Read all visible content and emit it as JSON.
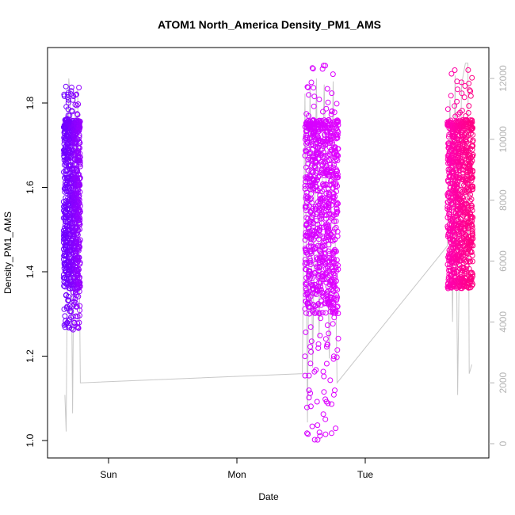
{
  "chart_data": {
    "type": "scatter",
    "title": "ATOM1 North_America Density_PM1_AMS",
    "xlabel": "Date",
    "ylabel": "Density_PM1_AMS",
    "x_axis": {
      "kind": "date",
      "range": [
        "Sat",
        "Tue"
      ],
      "ticks": [
        "Sun",
        "Mon",
        "Tue"
      ]
    },
    "y_axis": {
      "range": [
        0.98,
        1.92
      ],
      "ticks": [
        1.0,
        1.2,
        1.4,
        1.6,
        1.8
      ]
    },
    "y2_axis": {
      "range": [
        0,
        12500
      ],
      "ticks": [
        0,
        2000,
        4000,
        6000,
        8000,
        10000,
        12000
      ],
      "color": "#b3b3b3"
    },
    "grid": false,
    "legend": "none",
    "series": [
      {
        "kind": "points",
        "marker": "open-circle",
        "color_start": "#6b00ff",
        "color_end": "#9a00ff",
        "x_day_range": [
          -0.35,
          -0.22
        ],
        "y_summary": {
          "core_low": 1.36,
          "core_high": 1.75,
          "min": 1.26,
          "max": 1.84
        }
      },
      {
        "kind": "points",
        "marker": "open-circle",
        "color_start": "#d400ff",
        "color_end": "#e000ff",
        "x_day_range": [
          1.53,
          1.79
        ],
        "y_summary": {
          "core_low": 1.3,
          "core_high": 1.75,
          "min": 1.0,
          "max": 1.9
        }
      },
      {
        "kind": "points",
        "marker": "open-circle",
        "color_start": "#ff00b3",
        "color_end": "#ff0080",
        "x_day_range": [
          2.64,
          2.84
        ],
        "y_summary": {
          "core_low": 1.38,
          "core_high": 1.75,
          "min": 1.36,
          "max": 1.88
        }
      },
      {
        "kind": "line",
        "axis": "y2",
        "color": "#c8c8c8",
        "points": [
          [
            -0.34,
            1600
          ],
          [
            -0.33,
            400
          ],
          [
            -0.31,
            12000
          ],
          [
            -0.3,
            11400
          ],
          [
            -0.28,
            1000
          ],
          [
            -0.26,
            11500
          ],
          [
            -0.24,
            11600
          ],
          [
            -0.22,
            2000
          ],
          [
            1.51,
            2300
          ],
          [
            1.53,
            11500
          ],
          [
            1.55,
            700
          ],
          [
            1.57,
            11800
          ],
          [
            1.59,
            2500
          ],
          [
            1.62,
            12000
          ],
          [
            1.64,
            3500
          ],
          [
            1.68,
            11800
          ],
          [
            1.72,
            2800
          ],
          [
            1.75,
            11900
          ],
          [
            1.78,
            2000
          ],
          [
            2.64,
            6500
          ],
          [
            2.66,
            11300
          ],
          [
            2.68,
            4000
          ],
          [
            2.7,
            12100
          ],
          [
            2.72,
            1600
          ],
          [
            2.75,
            11800
          ],
          [
            2.78,
            12500
          ],
          [
            2.8,
            12500
          ],
          [
            2.81,
            2300
          ],
          [
            2.83,
            2600
          ]
        ]
      }
    ]
  }
}
